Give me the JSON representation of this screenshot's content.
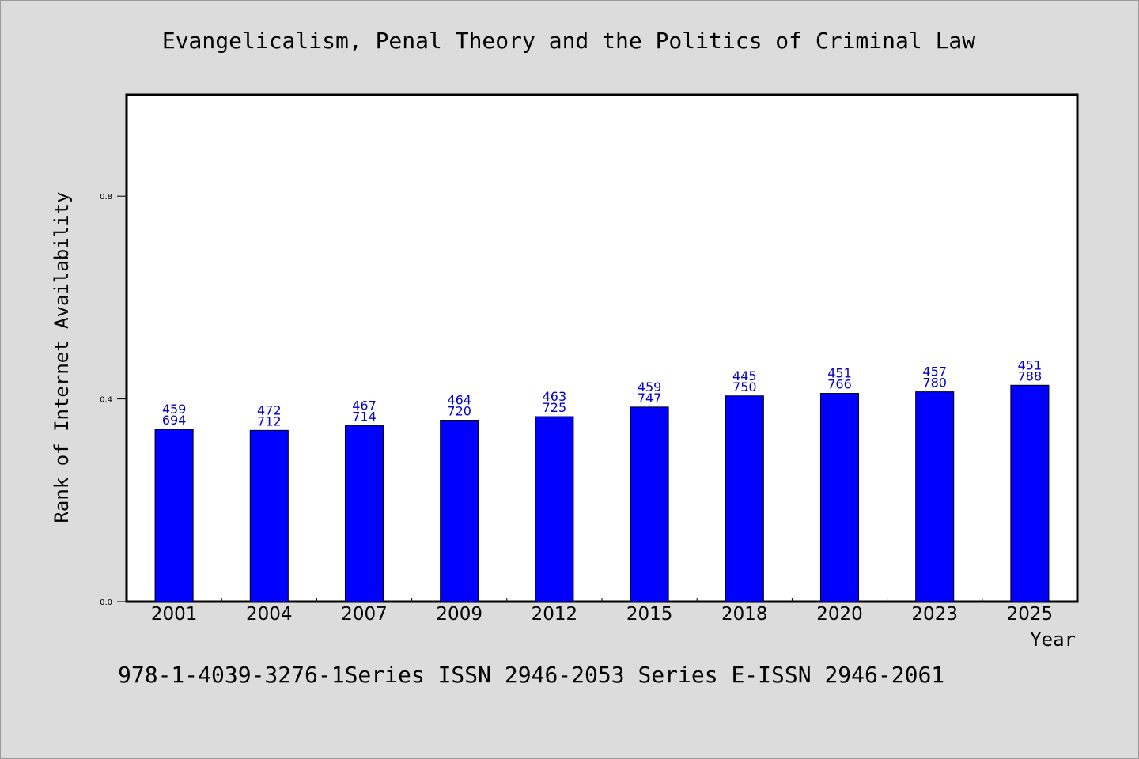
{
  "chart_data": {
    "type": "bar",
    "title": "Evangelicalism, Penal Theory and the Politics of Criminal Law",
    "xlabel": "Year",
    "ylabel": "Rank of Internet Availability",
    "categories": [
      "2001",
      "2004",
      "2007",
      "2009",
      "2012",
      "2015",
      "2018",
      "2020",
      "2023",
      "2025"
    ],
    "series": [
      {
        "values": [
          0.34,
          0.338,
          0.347,
          0.358,
          0.365,
          0.384,
          0.406,
          0.411,
          0.414,
          0.427
        ]
      }
    ],
    "data_labels": [
      [
        "459",
        "694"
      ],
      [
        "472",
        "712"
      ],
      [
        "467",
        "714"
      ],
      [
        "464",
        "720"
      ],
      [
        "463",
        "725"
      ],
      [
        "459",
        "747"
      ],
      [
        "445",
        "750"
      ],
      [
        "451",
        "766"
      ],
      [
        "457",
        "780"
      ],
      [
        "451",
        "788"
      ]
    ],
    "yticks": [
      "0.0",
      "0.4",
      "0.8"
    ],
    "ylim": [
      0,
      1.0
    ],
    "grid": false,
    "colors": {
      "bar": "#0000ff",
      "label": "#0000cc",
      "background": "#dcdcdc",
      "plot_bg": "#ffffff"
    },
    "footer": "978-1-4039-3276-1Series ISSN 2946-2053 Series E-ISSN 2946-2061"
  }
}
